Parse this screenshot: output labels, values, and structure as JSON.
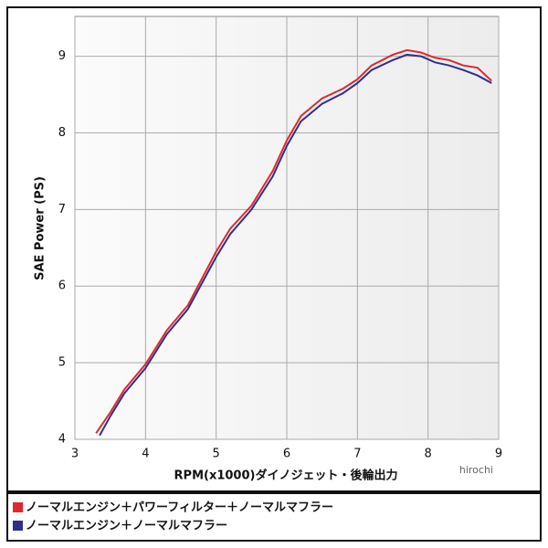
{
  "chart_data": {
    "type": "line",
    "x_label": "RPM(x1000)ダイノジェット・後輪出力",
    "y_label": "SAE Power (PS)",
    "watermark": "hirochi",
    "xlim": [
      3,
      9
    ],
    "xticks": [
      3,
      4,
      5,
      6,
      7,
      8,
      9
    ],
    "ylim": [
      4,
      9.52
    ],
    "yticks": [
      4,
      5,
      6,
      7,
      8,
      9
    ],
    "grid": true,
    "series": [
      {
        "name": "ノーマルエンジン＋パワーフィルター＋ノーマルマフラー",
        "color": "#e0282e",
        "x": [
          3.3,
          3.5,
          3.7,
          4.0,
          4.3,
          4.6,
          5.0,
          5.2,
          5.5,
          5.8,
          6.0,
          6.2,
          6.5,
          6.8,
          7.0,
          7.2,
          7.5,
          7.7,
          7.9,
          8.1,
          8.3,
          8.5,
          8.7,
          8.9
        ],
        "values": [
          4.08,
          4.35,
          4.65,
          4.98,
          5.42,
          5.75,
          6.45,
          6.75,
          7.05,
          7.5,
          7.9,
          8.22,
          8.45,
          8.58,
          8.7,
          8.88,
          9.02,
          9.08,
          9.05,
          8.98,
          8.95,
          8.88,
          8.85,
          8.68
        ]
      },
      {
        "name": "ノーマルエンジン＋ノーマルマフラー",
        "color": "#2e2f8c",
        "x": [
          3.35,
          3.5,
          3.7,
          4.0,
          4.3,
          4.6,
          5.0,
          5.2,
          5.5,
          5.8,
          6.0,
          6.2,
          6.5,
          6.8,
          7.0,
          7.2,
          7.5,
          7.7,
          7.9,
          8.1,
          8.3,
          8.5,
          8.7,
          8.9
        ],
        "values": [
          4.05,
          4.3,
          4.6,
          4.93,
          5.37,
          5.7,
          6.38,
          6.68,
          7.0,
          7.43,
          7.83,
          8.15,
          8.38,
          8.52,
          8.65,
          8.82,
          8.95,
          9.02,
          9.0,
          8.92,
          8.88,
          8.82,
          8.75,
          8.65
        ]
      }
    ]
  }
}
